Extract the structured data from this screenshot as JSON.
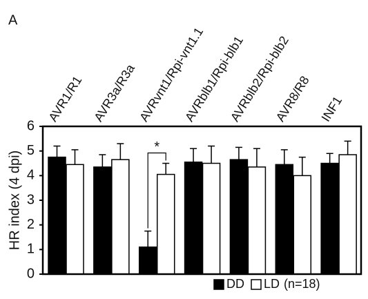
{
  "chart_data": {
    "type": "bar",
    "panel_label": "A",
    "y_label": "HR index (4 dpi)",
    "categories": [
      "AVR1/R1",
      "AVR3a/R3a",
      "AVRvnt1/Rpi-vnt1.1",
      "AVRblb1/Rpi-blb1",
      "AVRblb2/Rpi-blb2",
      "AVR8/R8",
      "INF1"
    ],
    "series": [
      {
        "name": "DD",
        "color": "#000000",
        "values": [
          4.75,
          4.35,
          1.1,
          4.55,
          4.65,
          4.45,
          4.5
        ],
        "errors": [
          0.45,
          0.5,
          0.65,
          0.55,
          0.5,
          0.6,
          0.4
        ]
      },
      {
        "name": "LD",
        "color": "#ffffff",
        "values": [
          4.45,
          4.65,
          4.05,
          4.5,
          4.35,
          4.0,
          4.85
        ],
        "errors": [
          0.6,
          0.65,
          0.45,
          0.7,
          0.75,
          0.75,
          0.55
        ]
      }
    ],
    "legend_note": "(n=18)",
    "annotation": "*",
    "ylim": [
      0,
      6
    ],
    "yticks": [
      0,
      1,
      2,
      3,
      4,
      5,
      6
    ]
  }
}
